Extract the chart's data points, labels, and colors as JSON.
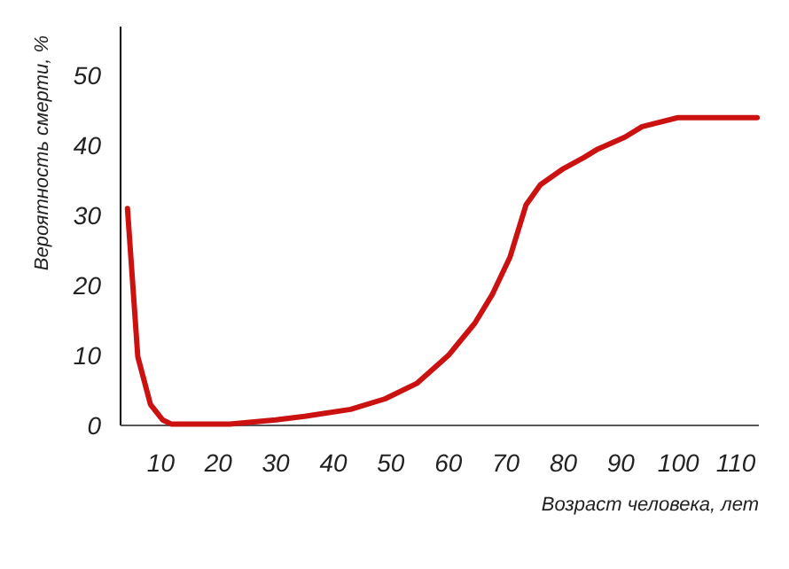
{
  "chart_data": {
    "type": "line",
    "xlabel": "Возраст человека, лет",
    "ylabel": "Вероятность смерти, %",
    "x": [
      4.2,
      6,
      8.2,
      10.3,
      11.8,
      22,
      30,
      35,
      43,
      49,
      54.5,
      60,
      64.6,
      67.7,
      70.7,
      73.5,
      76,
      80,
      83.6,
      86,
      90.7,
      93.7,
      100,
      113.7
    ],
    "series": [
      {
        "color": "#cc1111",
        "values": [
          31,
          9.8,
          3,
          0.8,
          0.2,
          0.2,
          0.8,
          1.3,
          2.3,
          3.8,
          6,
          10,
          14.6,
          18.8,
          24,
          31.5,
          34.4,
          36.7,
          38.3,
          39.5,
          41.2,
          42.7,
          44,
          44
        ]
      }
    ],
    "xlim": [
      3,
      114
    ],
    "xticks": [
      10,
      20,
      30,
      40,
      50,
      60,
      70,
      80,
      90,
      100,
      110
    ],
    "ylim": [
      0,
      57
    ],
    "yticks": [
      0,
      10,
      20,
      30,
      40,
      50
    ],
    "grid": false,
    "marker": "none",
    "line_style": "solid"
  }
}
